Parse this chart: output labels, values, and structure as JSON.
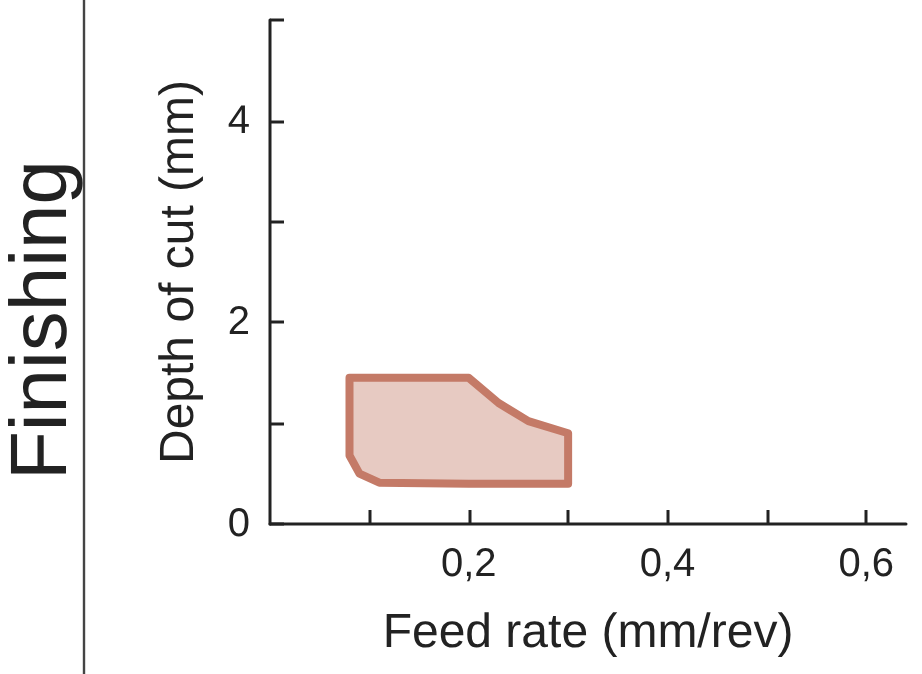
{
  "chart_data": {
    "type": "area",
    "xlabel": "Feed rate (mm/rev)",
    "ylabel": "Depth of cut (mm)",
    "annotations": [
      "Finishing"
    ],
    "xlim": [
      0,
      0.64
    ],
    "ylim": [
      0,
      5
    ],
    "xticks": [
      {
        "value": 0.1,
        "label": null
      },
      {
        "value": 0.2,
        "label": "0,2"
      },
      {
        "value": 0.3,
        "label": null
      },
      {
        "value": 0.4,
        "label": "0,4"
      },
      {
        "value": 0.5,
        "label": null
      },
      {
        "value": 0.6,
        "label": "0,6"
      }
    ],
    "yticks": [
      0,
      {
        "value": 1,
        "label": null
      },
      2,
      {
        "value": 3,
        "label": null
      },
      4,
      {
        "value": 5,
        "label": null
      }
    ],
    "grid": false,
    "series": [
      {
        "color": "#c47a67",
        "x": [
          0.08,
          0.2,
          0.23,
          0.26,
          0.3,
          0.3,
          0.2,
          0.11,
          0.09,
          0.08
        ],
        "values": [
          1.45,
          1.45,
          1.2,
          1.02,
          0.9,
          0.4,
          0.4,
          0.41,
          0.5,
          0.68
        ]
      }
    ]
  }
}
